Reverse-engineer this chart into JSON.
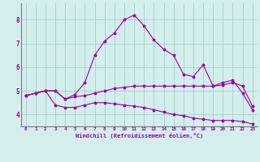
{
  "background_color": "#d4eeee",
  "grid_color": "#aacccc",
  "line_color": "#990099",
  "xlabel": "Windchill (Refroidissement éolien,°C)",
  "xlim": [
    -0.5,
    23.5
  ],
  "ylim": [
    3.5,
    8.7
  ],
  "yticks": [
    4,
    5,
    6,
    7,
    8
  ],
  "xticks": [
    0,
    1,
    2,
    3,
    4,
    5,
    6,
    7,
    8,
    9,
    10,
    11,
    12,
    13,
    14,
    15,
    16,
    17,
    18,
    19,
    20,
    21,
    22,
    23
  ],
  "series1_x": [
    0,
    1,
    2,
    3,
    4,
    5,
    6,
    7,
    8,
    9,
    10,
    11,
    12,
    13,
    14,
    15,
    16,
    17,
    18,
    19,
    20,
    21,
    22,
    23
  ],
  "series1_y": [
    4.8,
    4.9,
    5.0,
    5.0,
    4.65,
    4.85,
    5.35,
    6.5,
    7.1,
    7.45,
    8.0,
    8.2,
    7.75,
    7.15,
    6.75,
    6.5,
    5.7,
    5.6,
    6.1,
    5.2,
    5.35,
    5.45,
    4.9,
    4.2
  ],
  "series2_x": [
    0,
    1,
    2,
    3,
    4,
    5,
    6,
    7,
    8,
    9,
    10,
    11,
    12,
    13,
    14,
    15,
    16,
    17,
    18,
    19,
    20,
    21,
    22,
    23
  ],
  "series2_y": [
    4.8,
    4.9,
    5.0,
    5.0,
    4.65,
    4.75,
    4.8,
    4.9,
    5.0,
    5.1,
    5.15,
    5.2,
    5.2,
    5.2,
    5.2,
    5.2,
    5.2,
    5.2,
    5.2,
    5.2,
    5.25,
    5.35,
    5.2,
    4.35
  ],
  "series3_x": [
    0,
    1,
    2,
    3,
    4,
    5,
    6,
    7,
    8,
    9,
    10,
    11,
    12,
    13,
    14,
    15,
    16,
    17,
    18,
    19,
    20,
    21,
    22,
    23
  ],
  "series3_y": [
    4.8,
    4.9,
    5.0,
    4.4,
    4.3,
    4.3,
    4.4,
    4.5,
    4.5,
    4.45,
    4.4,
    4.35,
    4.3,
    4.2,
    4.1,
    4.0,
    3.95,
    3.85,
    3.8,
    3.75,
    3.75,
    3.75,
    3.7,
    3.6
  ]
}
